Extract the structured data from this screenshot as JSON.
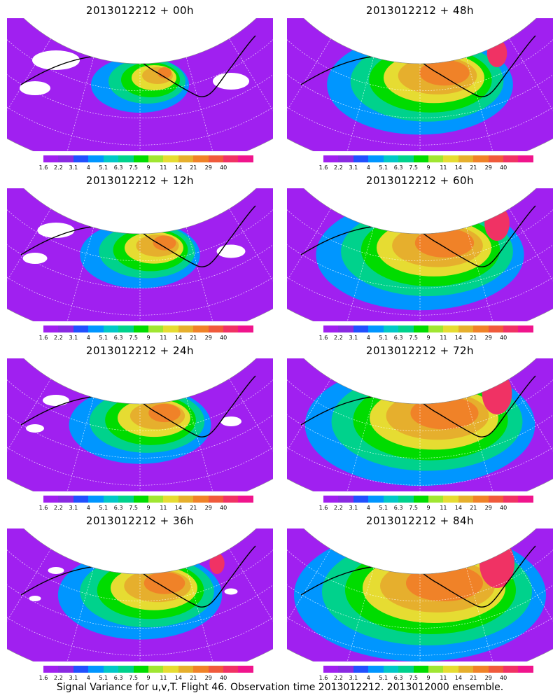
{
  "caption": "Signal Variance for u,v,T. Flight 46. Observation time 2013012212. 2013012000 ensemble.",
  "colorbar": {
    "labels": [
      "1.6",
      "2.2",
      "3.1",
      "4",
      "5.1",
      "6.3",
      "7.5",
      "9",
      "11",
      "14",
      "21",
      "29",
      "40"
    ],
    "colors": [
      "#a020f0",
      "#8a2be2",
      "#2050ff",
      "#0096ff",
      "#00c8c8",
      "#00d28c",
      "#00dc00",
      "#a0e632",
      "#e6dc32",
      "#e6af2d",
      "#f08228",
      "#f05a3c",
      "#f03264",
      "#f0148c"
    ]
  },
  "panels": [
    {
      "title": "2013012212 + 00h",
      "lead_hours": 0
    },
    {
      "title": "2013012212 + 48h",
      "lead_hours": 48
    },
    {
      "title": "2013012212 + 12h",
      "lead_hours": 12
    },
    {
      "title": "2013012212 + 60h",
      "lead_hours": 60
    },
    {
      "title": "2013012212 + 24h",
      "lead_hours": 24
    },
    {
      "title": "2013012212 + 72h",
      "lead_hours": 72
    },
    {
      "title": "2013012212 + 36h",
      "lead_hours": 36
    },
    {
      "title": "2013012212 + 84h",
      "lead_hours": 84
    }
  ]
}
